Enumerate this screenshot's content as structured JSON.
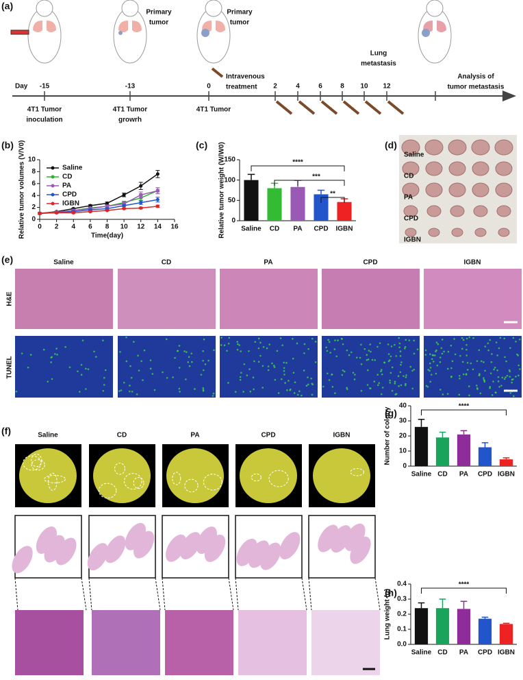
{
  "panel_labels": [
    "(a)",
    "(b)",
    "(c)",
    "(d)",
    "(e)",
    "(f)",
    "(g)",
    "(h)"
  ],
  "timeline": {
    "day_label": "Day",
    "days": [
      "-15",
      "-13",
      "0",
      "2",
      "4",
      "6",
      "8",
      "10",
      "12"
    ],
    "events": [
      [
        "4T1 Tumor",
        "inoculation"
      ],
      [
        "4T1 Tumor",
        "growrh"
      ],
      [
        "4T1 Tumor"
      ]
    ],
    "notes": [
      [
        "Primary",
        "tumor"
      ],
      [
        "Primary",
        "tumor"
      ],
      [
        "Intravenous",
        "treatment"
      ],
      [
        "Lung",
        "metastasis"
      ],
      [
        "Analysis of",
        "tumor metastasis"
      ]
    ]
  },
  "panel_d": {
    "rows": [
      "Saline",
      "CD",
      "PA",
      "CPD",
      "IGBN"
    ]
  },
  "panel_e": {
    "columns": [
      "Saline",
      "CD",
      "PA",
      "CPD",
      "IGBN"
    ],
    "rows": [
      "H&E",
      "TUNEL"
    ]
  },
  "panel_f": {
    "columns": [
      "Saline",
      "CD",
      "PA",
      "CPD",
      "IGBN"
    ]
  },
  "chart_data": [
    {
      "type": "line",
      "x_label": "Time(day)",
      "y_label": "Relative tumor volumes (V/V0)",
      "x": [
        0,
        2,
        4,
        6,
        8,
        10,
        12,
        14
      ],
      "xlim": [
        0,
        16
      ],
      "xticks": [
        0,
        2,
        4,
        6,
        8,
        10,
        12,
        14,
        16
      ],
      "ylim": [
        0,
        10
      ],
      "yticks": [
        0,
        2,
        4,
        6,
        8,
        10
      ],
      "legend": "upper left",
      "series": [
        {
          "name": "Saline",
          "color": "#111111",
          "values": [
            1,
            1.3,
            1.8,
            2.3,
            2.7,
            4.1,
            5.6,
            7.6
          ],
          "errors": [
            0.1,
            0.1,
            0.1,
            0.15,
            0.2,
            0.3,
            0.6,
            0.6
          ]
        },
        {
          "name": "CD",
          "color": "#2fb32f",
          "values": [
            1,
            1.2,
            1.5,
            1.9,
            2.2,
            2.8,
            3.6,
            4.8
          ],
          "errors": [
            0.1,
            0.1,
            0.1,
            0.15,
            0.2,
            0.25,
            0.4,
            0.5
          ]
        },
        {
          "name": "PA",
          "color": "#9b59b6",
          "values": [
            1,
            1.2,
            1.5,
            1.8,
            2.2,
            2.6,
            4.1,
            4.8
          ],
          "errors": [
            0.1,
            0.1,
            0.1,
            0.15,
            0.2,
            0.3,
            0.5,
            0.5
          ]
        },
        {
          "name": "CPD",
          "color": "#2255cc",
          "values": [
            1,
            1.1,
            1.3,
            1.6,
            1.8,
            2.3,
            2.8,
            3.3
          ],
          "errors": [
            0.1,
            0.1,
            0.1,
            0.1,
            0.15,
            0.2,
            0.3,
            0.4
          ]
        },
        {
          "name": "IGBN",
          "color": "#e02424",
          "values": [
            1,
            1.1,
            1.1,
            1.3,
            1.5,
            1.8,
            1.9,
            2.2
          ],
          "errors": [
            0.1,
            0.1,
            0.1,
            0.1,
            0.1,
            0.1,
            0.15,
            0.2
          ]
        }
      ]
    },
    {
      "type": "bar",
      "y_label": "Relative tumor weight (W/W0)",
      "categories": [
        "Saline",
        "CD",
        "PA",
        "CPD",
        "IGBN"
      ],
      "values": [
        100,
        80,
        83,
        65,
        46
      ],
      "errors": [
        14,
        12,
        16,
        10,
        8
      ],
      "colors": [
        "#111111",
        "#33bb33",
        "#9b59b6",
        "#2255cc",
        "#ee2222"
      ],
      "ylim": [
        0,
        150
      ],
      "yticks": [
        0,
        50,
        100,
        150
      ],
      "annotations": [
        "****",
        "***",
        "**"
      ]
    },
    {
      "type": "bar",
      "y_label": "Number of colony",
      "categories": [
        "Saline",
        "CD",
        "PA",
        "CPD",
        "IGBN"
      ],
      "values": [
        26,
        19,
        21,
        12.5,
        4.5
      ],
      "errors": [
        5,
        3.5,
        2.5,
        3,
        1
      ],
      "colors": [
        "#111111",
        "#1aa35a",
        "#8e2d9a",
        "#2255cc",
        "#ee2222"
      ],
      "ylim": [
        0,
        40
      ],
      "yticks": [
        0,
        10,
        20,
        30,
        40
      ],
      "annotations": [
        "****"
      ]
    },
    {
      "type": "bar",
      "y_label": "Lung weight (g)",
      "categories": [
        "Saline",
        "CD",
        "PA",
        "CPD",
        "IGBN"
      ],
      "values": [
        0.24,
        0.24,
        0.235,
        0.17,
        0.135
      ],
      "errors": [
        0.035,
        0.06,
        0.05,
        0.01,
        0.005
      ],
      "colors": [
        "#111111",
        "#1aa35a",
        "#8e2d9a",
        "#2255cc",
        "#ee2222"
      ],
      "ylim": [
        0,
        0.4
      ],
      "yticks": [
        {
          "value": 0,
          "label": "0.0"
        },
        0.1,
        0.2,
        0.3,
        0.4
      ],
      "annotations": [
        "****"
      ]
    }
  ]
}
